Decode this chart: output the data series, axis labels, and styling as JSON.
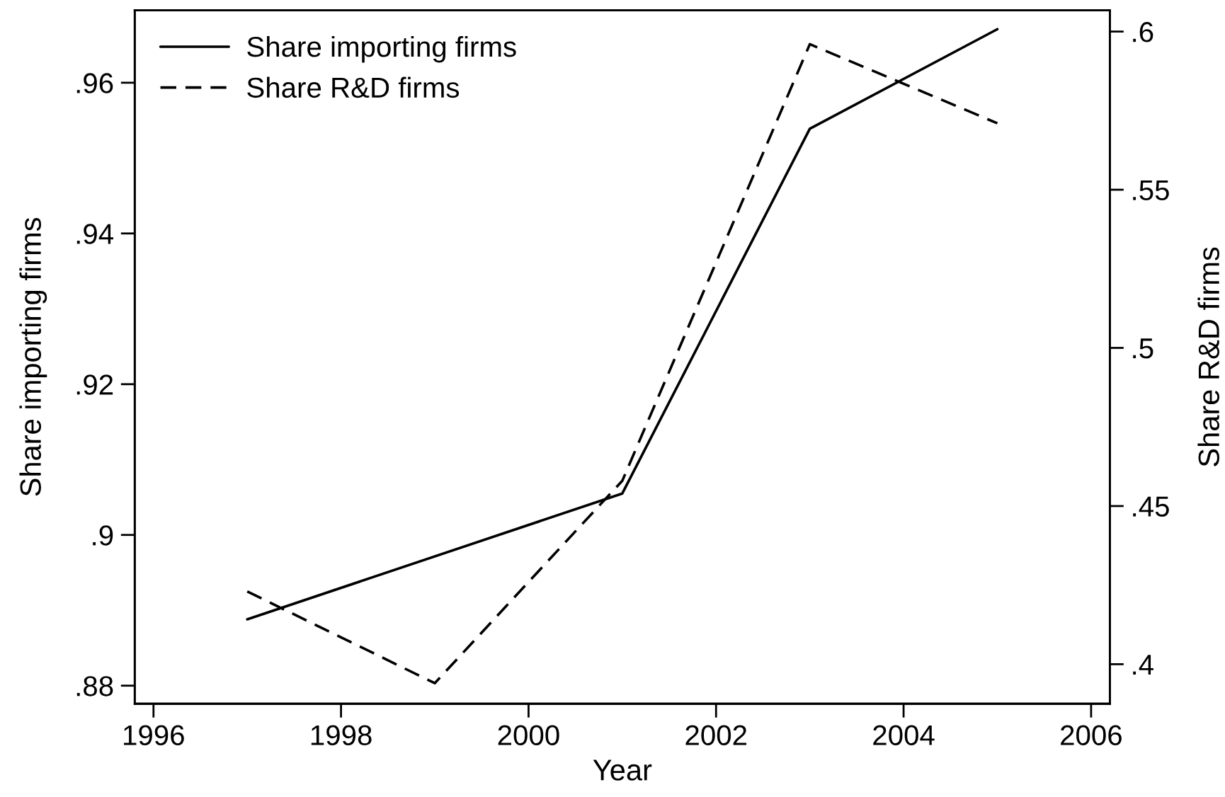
{
  "chart_data": {
    "type": "line",
    "xlabel": "Year",
    "ylabel": "Share importing firms",
    "y2label": "Share R&D firms",
    "xlim": [
      1995.8,
      2006.2
    ],
    "xticks": [
      1996,
      1998,
      2000,
      2002,
      2004,
      2006
    ],
    "ylim": [
      0.8776,
      0.9696
    ],
    "yticks": [
      {
        "value": 0.88,
        "label": ".88"
      },
      {
        "value": 0.9,
        "label": ".9"
      },
      {
        "value": 0.92,
        "label": ".92"
      },
      {
        "value": 0.94,
        "label": ".94"
      },
      {
        "value": 0.96,
        "label": ".96"
      }
    ],
    "y2lim": [
      0.3875,
      0.6067
    ],
    "y2ticks": [
      {
        "value": 0.4,
        "label": ".4"
      },
      {
        "value": 0.45,
        "label": ".45"
      },
      {
        "value": 0.5,
        "label": ".5"
      },
      {
        "value": 0.55,
        "label": ".55"
      },
      {
        "value": 0.6,
        "label": ".6"
      }
    ],
    "series": [
      {
        "name": "Share importing firms",
        "color": "#000000",
        "line_style": "solid",
        "x": [
          1997,
          2001,
          2003,
          2005
        ],
        "values": [
          0.8888,
          0.9055,
          0.9539,
          0.9671
        ]
      },
      {
        "name": "Share R&D firms",
        "color": "#000000",
        "line_style": "dashed",
        "axis": "y2",
        "x": [
          1997,
          1999,
          2001,
          2003,
          2005
        ],
        "values": [
          0.423,
          0.394,
          0.458,
          0.596,
          0.571
        ]
      }
    ],
    "legend": "top left"
  }
}
